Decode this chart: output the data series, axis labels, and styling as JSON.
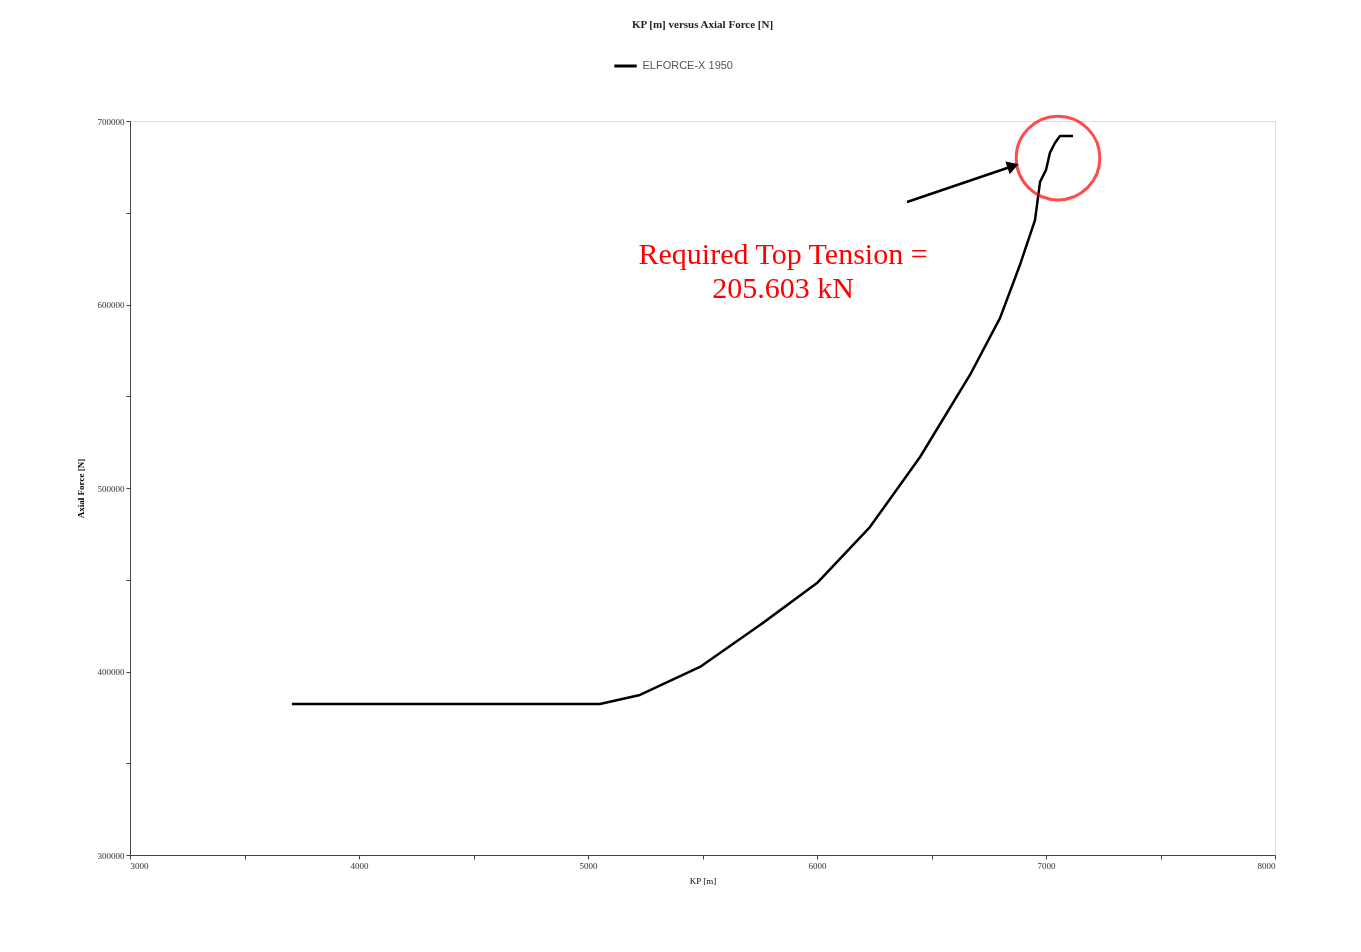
{
  "chart_data": {
    "type": "line",
    "title": "KP [m]   versus   Axial Force [N]",
    "xlabel": "KP [m]",
    "ylabel": "Axial Force [N]",
    "x": [
      3707,
      5052,
      5227,
      5489,
      5751,
      6000,
      6231,
      6450,
      6668,
      6799,
      6886,
      6952,
      6974,
      7000,
      7017,
      7039,
      7061,
      7118
    ],
    "series": [
      {
        "name": "ELFORCE-X 1950",
        "color": "#000000",
        "values": [
          382300,
          382300,
          387200,
          402500,
          425300,
          448200,
          478700,
          516900,
          561600,
          592600,
          621500,
          646000,
          666800,
          673300,
          682600,
          688000,
          691800,
          691800
        ]
      }
    ],
    "xlim": [
      3000,
      8000
    ],
    "xticks": [
      3000,
      {
        "value": 3500,
        "label": null
      },
      4000,
      {
        "value": 4500,
        "label": null
      },
      5000,
      {
        "value": 5500,
        "label": null
      },
      6000,
      {
        "value": 6500,
        "label": null
      },
      7000,
      {
        "value": 7500,
        "label": null
      },
      8000
    ],
    "ylim": [
      300000,
      700000
    ],
    "yticks": [
      300000,
      {
        "value": 350000,
        "label": null
      },
      400000,
      {
        "value": 450000,
        "label": null
      },
      500000,
      {
        "value": 550000,
        "label": null
      },
      600000,
      {
        "value": 650000,
        "label": null
      },
      700000
    ],
    "annotations": [
      "Required Top Tension = 205.603 kN"
    ],
    "legend": "top",
    "grid": false,
    "marker": "none",
    "line_style": "solid"
  }
}
